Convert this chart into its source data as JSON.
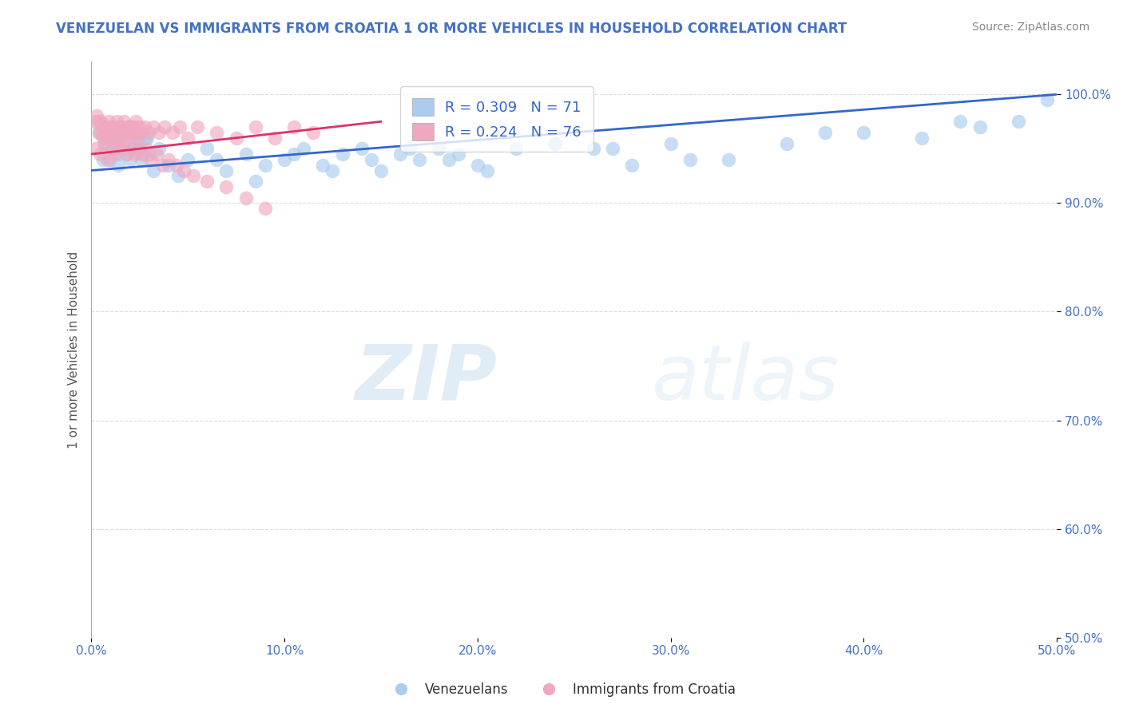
{
  "title": "VENEZUELAN VS IMMIGRANTS FROM CROATIA 1 OR MORE VEHICLES IN HOUSEHOLD CORRELATION CHART",
  "source": "Source: ZipAtlas.com",
  "ylabel": "1 or more Vehicles in Household",
  "xlim": [
    0.0,
    50.0
  ],
  "ylim": [
    50.0,
    103.0
  ],
  "xticks": [
    0.0,
    10.0,
    20.0,
    30.0,
    40.0,
    50.0
  ],
  "yticks": [
    50.0,
    60.0,
    70.0,
    80.0,
    90.0,
    100.0
  ],
  "blue_R": 0.309,
  "blue_N": 71,
  "pink_R": 0.224,
  "pink_N": 76,
  "blue_color": "#aaccee",
  "pink_color": "#f0a8c0",
  "blue_line_color": "#3366cc",
  "pink_line_color": "#dd3366",
  "legend_blue_label": "R = 0.309   N = 71",
  "legend_pink_label": "R = 0.224   N = 76",
  "blue_scatter_x": [
    0.4,
    0.7,
    0.9,
    1.1,
    1.3,
    1.5,
    1.7,
    1.9,
    2.1,
    2.3,
    2.5,
    2.7,
    2.9,
    0.6,
    0.8,
    1.0,
    1.2,
    1.4,
    1.6,
    1.8,
    2.0,
    2.2,
    2.4,
    2.6,
    2.8,
    3.0,
    3.5,
    4.0,
    5.0,
    6.0,
    7.0,
    8.0,
    9.0,
    10.0,
    11.0,
    12.0,
    13.0,
    14.0,
    15.0,
    16.0,
    17.0,
    18.0,
    19.0,
    20.0,
    22.0,
    24.0,
    26.0,
    28.0,
    30.0,
    33.0,
    36.0,
    40.0,
    43.0,
    46.0,
    48.0,
    49.5,
    3.2,
    4.5,
    6.5,
    8.5,
    10.5,
    12.5,
    14.5,
    16.5,
    18.5,
    20.5,
    24.0,
    27.0,
    31.0,
    38.0,
    45.0
  ],
  "blue_scatter_y": [
    96.5,
    95.5,
    97.0,
    95.0,
    96.0,
    94.5,
    96.5,
    95.5,
    97.0,
    96.0,
    95.5,
    94.5,
    96.0,
    94.0,
    95.5,
    94.0,
    95.5,
    93.5,
    95.0,
    94.5,
    94.0,
    95.0,
    95.5,
    94.0,
    96.0,
    94.5,
    95.0,
    93.5,
    94.0,
    95.0,
    93.0,
    94.5,
    93.5,
    94.0,
    95.0,
    93.5,
    94.5,
    95.0,
    93.0,
    94.5,
    94.0,
    95.0,
    94.5,
    93.5,
    95.0,
    95.5,
    95.0,
    93.5,
    95.5,
    94.0,
    95.5,
    96.5,
    96.0,
    97.0,
    97.5,
    99.5,
    93.0,
    92.5,
    94.0,
    92.0,
    94.5,
    93.0,
    94.0,
    95.0,
    94.0,
    93.0,
    95.5,
    95.0,
    94.0,
    96.5,
    97.5
  ],
  "pink_scatter_x": [
    0.2,
    0.3,
    0.4,
    0.5,
    0.6,
    0.7,
    0.8,
    0.9,
    1.0,
    1.1,
    1.2,
    1.3,
    1.4,
    1.5,
    1.6,
    1.7,
    1.8,
    1.9,
    2.0,
    2.1,
    2.2,
    2.3,
    2.4,
    2.5,
    0.35,
    0.55,
    0.75,
    0.95,
    1.15,
    1.35,
    1.55,
    1.75,
    1.95,
    2.15,
    2.35,
    2.55,
    2.75,
    2.95,
    3.2,
    3.5,
    3.8,
    4.2,
    4.6,
    5.0,
    5.5,
    6.5,
    7.5,
    8.5,
    9.5,
    10.5,
    11.5,
    0.25,
    0.45,
    0.65,
    0.85,
    1.05,
    1.25,
    1.45,
    1.65,
    1.85,
    2.05,
    2.25,
    2.45,
    2.65,
    2.85,
    3.1,
    3.4,
    3.7,
    4.0,
    4.4,
    4.8,
    5.3,
    6.0,
    7.0,
    8.0,
    9.0
  ],
  "pink_scatter_y": [
    97.5,
    98.0,
    96.5,
    97.5,
    96.0,
    97.0,
    96.5,
    97.5,
    96.0,
    97.0,
    96.5,
    97.5,
    96.0,
    97.0,
    96.5,
    97.5,
    96.0,
    97.0,
    96.5,
    97.0,
    96.5,
    97.5,
    96.0,
    97.0,
    97.5,
    96.5,
    97.0,
    96.0,
    97.0,
    96.5,
    97.0,
    96.5,
    97.0,
    96.5,
    97.0,
    96.5,
    97.0,
    96.5,
    97.0,
    96.5,
    97.0,
    96.5,
    97.0,
    96.0,
    97.0,
    96.5,
    96.0,
    97.0,
    96.0,
    97.0,
    96.5,
    95.0,
    94.5,
    95.5,
    94.0,
    95.0,
    94.5,
    95.0,
    95.5,
    94.5,
    95.0,
    94.5,
    95.0,
    94.5,
    95.0,
    94.0,
    94.5,
    93.5,
    94.0,
    93.5,
    93.0,
    92.5,
    92.0,
    91.5,
    90.5,
    89.5
  ],
  "watermark_zip": "ZIP",
  "watermark_atlas": "atlas",
  "background_color": "#ffffff",
  "grid_color": "#cccccc",
  "title_color": "#4472c4",
  "title_fontsize": 12,
  "tick_label_color": "#4472c4",
  "axis_label_color": "#555555"
}
